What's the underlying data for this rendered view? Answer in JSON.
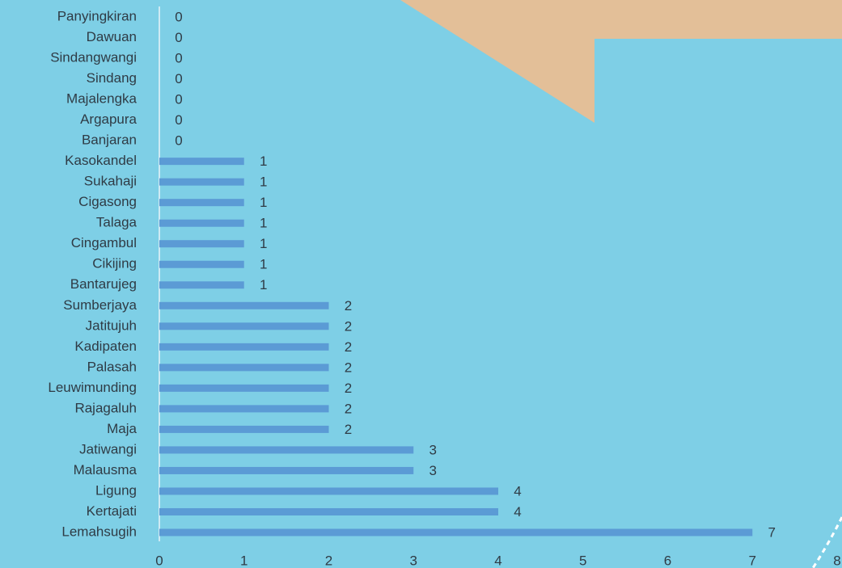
{
  "chart_data": {
    "type": "bar",
    "orientation": "horizontal",
    "categories": [
      "Panyingkiran",
      "Dawuan",
      "Sindangwangi",
      "Sindang",
      "Majalengka",
      "Argapura",
      "Banjaran",
      "Kasokandel",
      "Sukahaji",
      "Cigasong",
      "Talaga",
      "Cingambul",
      "Cikijing",
      "Bantarujeg",
      "Sumberjaya",
      "Jatitujuh",
      "Kadipaten",
      "Palasah",
      "Leuwimunding",
      "Rajagaluh",
      "Maja",
      "Jatiwangi",
      "Malausma",
      "Ligung",
      "Kertajati",
      "Lemahsugih"
    ],
    "values": [
      0,
      0,
      0,
      0,
      0,
      0,
      0,
      1,
      1,
      1,
      1,
      1,
      1,
      1,
      2,
      2,
      2,
      2,
      2,
      2,
      2,
      3,
      3,
      4,
      4,
      7
    ],
    "color": "#5b9bd5",
    "xlim": [
      0,
      8
    ],
    "xticks": [
      0,
      1,
      2,
      3,
      4,
      5,
      6,
      7,
      8
    ],
    "grid": false
  }
}
